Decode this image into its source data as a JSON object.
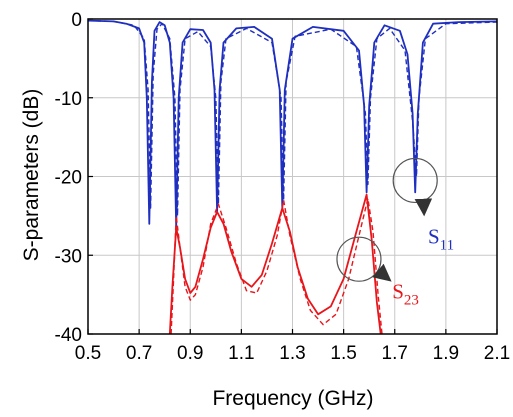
{
  "chart_data": {
    "type": "line",
    "xlabel": "Frequency (GHz)",
    "ylabel": "S-parameters (dB)",
    "xlim": [
      0.5,
      2.1
    ],
    "ylim": [
      -40,
      0
    ],
    "x_ticks": [
      "0.5",
      "0.7",
      "0.9",
      "1.1",
      "1.3",
      "1.5",
      "1.7",
      "1.9",
      "2.1"
    ],
    "y_ticks": [
      "0",
      "-10",
      "-20",
      "-30",
      "-40"
    ],
    "grid": true,
    "colors": {
      "s11": "#1f2fbf",
      "s23": "#e8161b",
      "annotation": "#333333"
    },
    "series": [
      {
        "name": "S11",
        "color": "#1f2fbf",
        "style": "solid",
        "points": [
          [
            0.5,
            -0.2
          ],
          [
            0.6,
            -0.3
          ],
          [
            0.65,
            -0.6
          ],
          [
            0.7,
            -1.2
          ],
          [
            0.72,
            -3
          ],
          [
            0.73,
            -10
          ],
          [
            0.74,
            -26
          ],
          [
            0.75,
            -8
          ],
          [
            0.76,
            -1.5
          ],
          [
            0.78,
            -0.4
          ],
          [
            0.8,
            -0.8
          ],
          [
            0.82,
            -3
          ],
          [
            0.835,
            -10
          ],
          [
            0.845,
            -26.5
          ],
          [
            0.855,
            -10
          ],
          [
            0.87,
            -3
          ],
          [
            0.9,
            -1.3
          ],
          [
            0.95,
            -1.4
          ],
          [
            0.98,
            -3
          ],
          [
            0.995,
            -9
          ],
          [
            1.005,
            -24.5
          ],
          [
            1.015,
            -9
          ],
          [
            1.03,
            -3
          ],
          [
            1.08,
            -1.2
          ],
          [
            1.15,
            -1
          ],
          [
            1.22,
            -2.5
          ],
          [
            1.25,
            -9
          ],
          [
            1.26,
            -24
          ],
          [
            1.27,
            -9
          ],
          [
            1.3,
            -2.5
          ],
          [
            1.38,
            -1
          ],
          [
            1.5,
            -1.5
          ],
          [
            1.56,
            -4
          ],
          [
            1.58,
            -11
          ],
          [
            1.59,
            -22
          ],
          [
            1.6,
            -11
          ],
          [
            1.62,
            -3
          ],
          [
            1.66,
            -0.8
          ],
          [
            1.72,
            -1.5
          ],
          [
            1.75,
            -4.5
          ],
          [
            1.77,
            -12
          ],
          [
            1.78,
            -22
          ],
          [
            1.79,
            -12
          ],
          [
            1.81,
            -3
          ],
          [
            1.85,
            -0.6
          ],
          [
            1.95,
            -0.4
          ],
          [
            2.1,
            -0.3
          ]
        ]
      },
      {
        "name": "",
        "color": "#1f2fbf",
        "style": "dashed",
        "points": [
          [
            0.5,
            -0.2
          ],
          [
            0.6,
            -0.3
          ],
          [
            0.68,
            -0.8
          ],
          [
            0.72,
            -2.5
          ],
          [
            0.735,
            -9
          ],
          [
            0.745,
            -24
          ],
          [
            0.755,
            -7
          ],
          [
            0.77,
            -1.3
          ],
          [
            0.79,
            -0.6
          ],
          [
            0.82,
            -2.5
          ],
          [
            0.84,
            -10
          ],
          [
            0.85,
            -25
          ],
          [
            0.86,
            -9
          ],
          [
            0.88,
            -2.5
          ],
          [
            0.93,
            -1.6
          ],
          [
            0.98,
            -3.5
          ],
          [
            1.0,
            -10
          ],
          [
            1.01,
            -23.5
          ],
          [
            1.02,
            -8
          ],
          [
            1.04,
            -2.5
          ],
          [
            1.12,
            -1.2
          ],
          [
            1.22,
            -3
          ],
          [
            1.255,
            -10
          ],
          [
            1.265,
            -23
          ],
          [
            1.275,
            -8
          ],
          [
            1.31,
            -2.2
          ],
          [
            1.45,
            -1.3
          ],
          [
            1.55,
            -3.5
          ],
          [
            1.585,
            -12
          ],
          [
            1.595,
            -21
          ],
          [
            1.605,
            -10
          ],
          [
            1.63,
            -2.5
          ],
          [
            1.68,
            -1.2
          ],
          [
            1.74,
            -4
          ],
          [
            1.77,
            -13
          ],
          [
            1.785,
            -20
          ],
          [
            1.795,
            -10
          ],
          [
            1.82,
            -2.5
          ],
          [
            1.9,
            -0.6
          ],
          [
            2.1,
            -0.4
          ]
        ]
      },
      {
        "name": "S23",
        "color": "#e8161b",
        "style": "solid",
        "points": [
          [
            0.82,
            -40
          ],
          [
            0.83,
            -34
          ],
          [
            0.845,
            -26.5
          ],
          [
            0.86,
            -29
          ],
          [
            0.88,
            -33
          ],
          [
            0.9,
            -34.8
          ],
          [
            0.92,
            -34
          ],
          [
            0.95,
            -30.5
          ],
          [
            0.98,
            -26.5
          ],
          [
            1.005,
            -24.5
          ],
          [
            1.03,
            -26
          ],
          [
            1.06,
            -29.5
          ],
          [
            1.1,
            -33
          ],
          [
            1.14,
            -34
          ],
          [
            1.18,
            -32.5
          ],
          [
            1.22,
            -28.5
          ],
          [
            1.26,
            -24
          ],
          [
            1.29,
            -27
          ],
          [
            1.32,
            -31.5
          ],
          [
            1.36,
            -35.5
          ],
          [
            1.4,
            -37.5
          ],
          [
            1.45,
            -36.5
          ],
          [
            1.5,
            -33
          ],
          [
            1.55,
            -27
          ],
          [
            1.59,
            -22.3
          ],
          [
            1.61,
            -28
          ],
          [
            1.63,
            -36
          ],
          [
            1.645,
            -40
          ]
        ]
      },
      {
        "name": "",
        "color": "#e8161b",
        "style": "dashed",
        "points": [
          [
            0.825,
            -40
          ],
          [
            0.835,
            -33
          ],
          [
            0.845,
            -25
          ],
          [
            0.86,
            -29
          ],
          [
            0.88,
            -34
          ],
          [
            0.9,
            -35.7
          ],
          [
            0.92,
            -35
          ],
          [
            0.95,
            -31.5
          ],
          [
            0.98,
            -26
          ],
          [
            1.01,
            -23.5
          ],
          [
            1.04,
            -26.5
          ],
          [
            1.08,
            -31
          ],
          [
            1.12,
            -34.5
          ],
          [
            1.16,
            -34.8
          ],
          [
            1.2,
            -32
          ],
          [
            1.24,
            -27.5
          ],
          [
            1.265,
            -23
          ],
          [
            1.29,
            -27.5
          ],
          [
            1.33,
            -33
          ],
          [
            1.37,
            -37
          ],
          [
            1.42,
            -38.8
          ],
          [
            1.47,
            -37.5
          ],
          [
            1.52,
            -33
          ],
          [
            1.56,
            -27.5
          ],
          [
            1.595,
            -22.8
          ],
          [
            1.615,
            -27
          ],
          [
            1.635,
            -35
          ],
          [
            1.65,
            -40
          ]
        ]
      }
    ],
    "annotations": [
      {
        "label": "S",
        "sub": "11",
        "color": "#1f2fbf",
        "circle": [
          1.78,
          -20.5
        ],
        "arrow_to": [
          1.83,
          -24.5
        ],
        "text_at": [
          1.83,
          -27.5
        ]
      },
      {
        "label": "S",
        "sub": "23",
        "color": "#e8161b",
        "circle": [
          1.56,
          -30.5
        ],
        "arrow_to": [
          1.69,
          -33
        ],
        "text_at": [
          1.69,
          -34.5
        ]
      }
    ]
  }
}
